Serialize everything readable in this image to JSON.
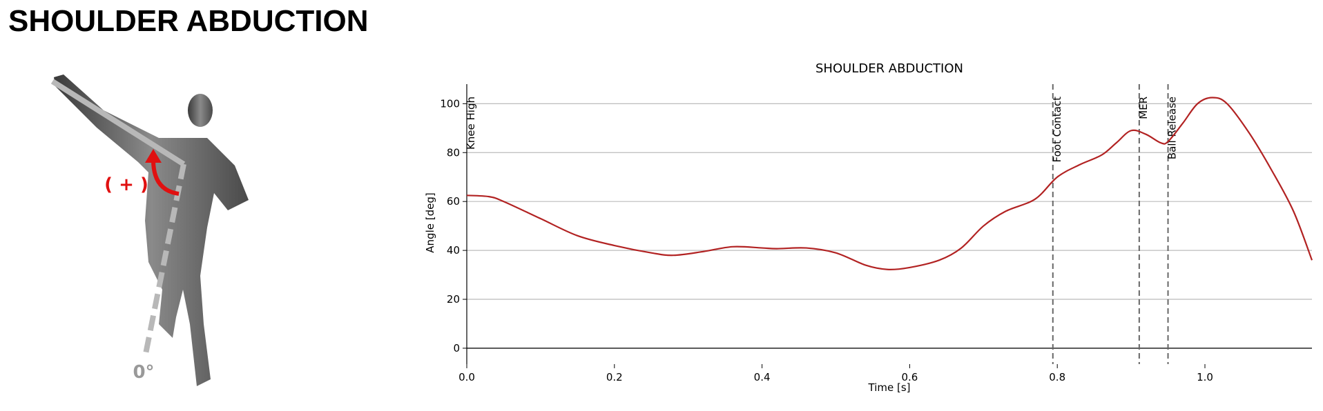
{
  "header": {
    "title": "SHOULDER ABDUCTION"
  },
  "figure": {
    "plus_label": "( + )",
    "zero_label": "0°"
  },
  "chart_data": {
    "type": "line",
    "title": "SHOULDER ABDUCTION",
    "x_label": "Time [s]",
    "y_label": "Angle [deg]",
    "x": [
      0,
      0.03,
      0.05,
      0.1,
      0.15,
      0.2,
      0.25,
      0.28,
      0.32,
      0.36,
      0.4,
      0.42,
      0.46,
      0.5,
      0.54,
      0.57,
      0.6,
      0.64,
      0.67,
      0.7,
      0.73,
      0.77,
      0.8,
      0.83,
      0.86,
      0.88,
      0.9,
      0.92,
      0.94,
      0.95,
      0.97,
      0.99,
      1.01,
      1.03,
      1.06,
      1.09,
      1.12,
      1.145
    ],
    "series": [
      {
        "color": "#b22222",
        "values": [
          62.5,
          62,
          60,
          53,
          46,
          42,
          39,
          38,
          39.5,
          41.5,
          41,
          40.7,
          41,
          39,
          34,
          32.2,
          33,
          36,
          41,
          50,
          56,
          61,
          70,
          75,
          79,
          84,
          89,
          87.5,
          84,
          84.5,
          92,
          100,
          102.5,
          100,
          88,
          73,
          56,
          36
        ]
      }
    ],
    "events": [
      {
        "x": 0,
        "label": "Knee High"
      },
      {
        "x": 0.794,
        "label": "Foot Contact"
      },
      {
        "x": 0.911,
        "label": "MER"
      },
      {
        "x": 0.95,
        "label": "Ball Release"
      }
    ],
    "xlim": [
      0,
      1.145
    ],
    "ylim": [
      -6.5,
      108
    ],
    "xticks": [
      {
        "value": 0,
        "label": "0.0"
      },
      0.2,
      0.4,
      0.6,
      0.8,
      {
        "value": 1,
        "label": "1.0"
      }
    ],
    "yticks": [
      0,
      20,
      40,
      60,
      80,
      100
    ],
    "grid": true
  }
}
